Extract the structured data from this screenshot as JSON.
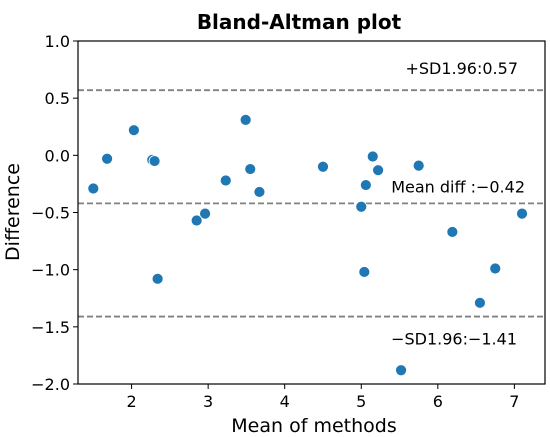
{
  "chart_data": {
    "type": "scatter",
    "title": "Bland-Altman plot",
    "xlabel": "Mean of methods",
    "ylabel": "Difference",
    "xlim": [
      1.3,
      7.4
    ],
    "ylim": [
      -2.0,
      1.0
    ],
    "xticks": [
      2,
      3,
      4,
      5,
      6,
      7
    ],
    "yticks": [
      -2.0,
      -1.5,
      -1.0,
      -0.5,
      0.0,
      0.5,
      1.0
    ],
    "xtick_labels": [
      "2",
      "3",
      "4",
      "5",
      "6",
      "7"
    ],
    "ytick_labels": [
      "−2.0",
      "−1.5",
      "−1.0",
      "−0.5",
      "0.0",
      "0.5",
      "1.0"
    ],
    "grid": false,
    "point_color": "#1f77b4",
    "line_color": "#808080",
    "points": [
      {
        "x": 1.5,
        "y": -0.29
      },
      {
        "x": 1.68,
        "y": -0.03
      },
      {
        "x": 2.03,
        "y": 0.22
      },
      {
        "x": 2.27,
        "y": -0.04
      },
      {
        "x": 2.3,
        "y": -0.05
      },
      {
        "x": 2.34,
        "y": -1.08
      },
      {
        "x": 2.85,
        "y": -0.57
      },
      {
        "x": 2.96,
        "y": -0.51
      },
      {
        "x": 3.23,
        "y": -0.22
      },
      {
        "x": 3.49,
        "y": 0.31
      },
      {
        "x": 3.55,
        "y": -0.12
      },
      {
        "x": 3.67,
        "y": -0.32
      },
      {
        "x": 4.5,
        "y": -0.1
      },
      {
        "x": 5.0,
        "y": -0.45
      },
      {
        "x": 5.04,
        "y": -1.02
      },
      {
        "x": 5.06,
        "y": -0.26
      },
      {
        "x": 5.15,
        "y": -0.01
      },
      {
        "x": 5.22,
        "y": -0.13
      },
      {
        "x": 5.52,
        "y": -1.88
      },
      {
        "x": 5.75,
        "y": -0.09
      },
      {
        "x": 6.19,
        "y": -0.67
      },
      {
        "x": 6.55,
        "y": -1.29
      },
      {
        "x": 6.75,
        "y": -0.99
      },
      {
        "x": 7.1,
        "y": -0.51
      }
    ],
    "reference_lines": [
      {
        "y": 0.57,
        "label": "+SD1.96:0.57"
      },
      {
        "y": -0.42,
        "label": "Mean diff :−0.42"
      },
      {
        "y": -1.41,
        "label": "−SD1.96:−1.41"
      }
    ]
  }
}
